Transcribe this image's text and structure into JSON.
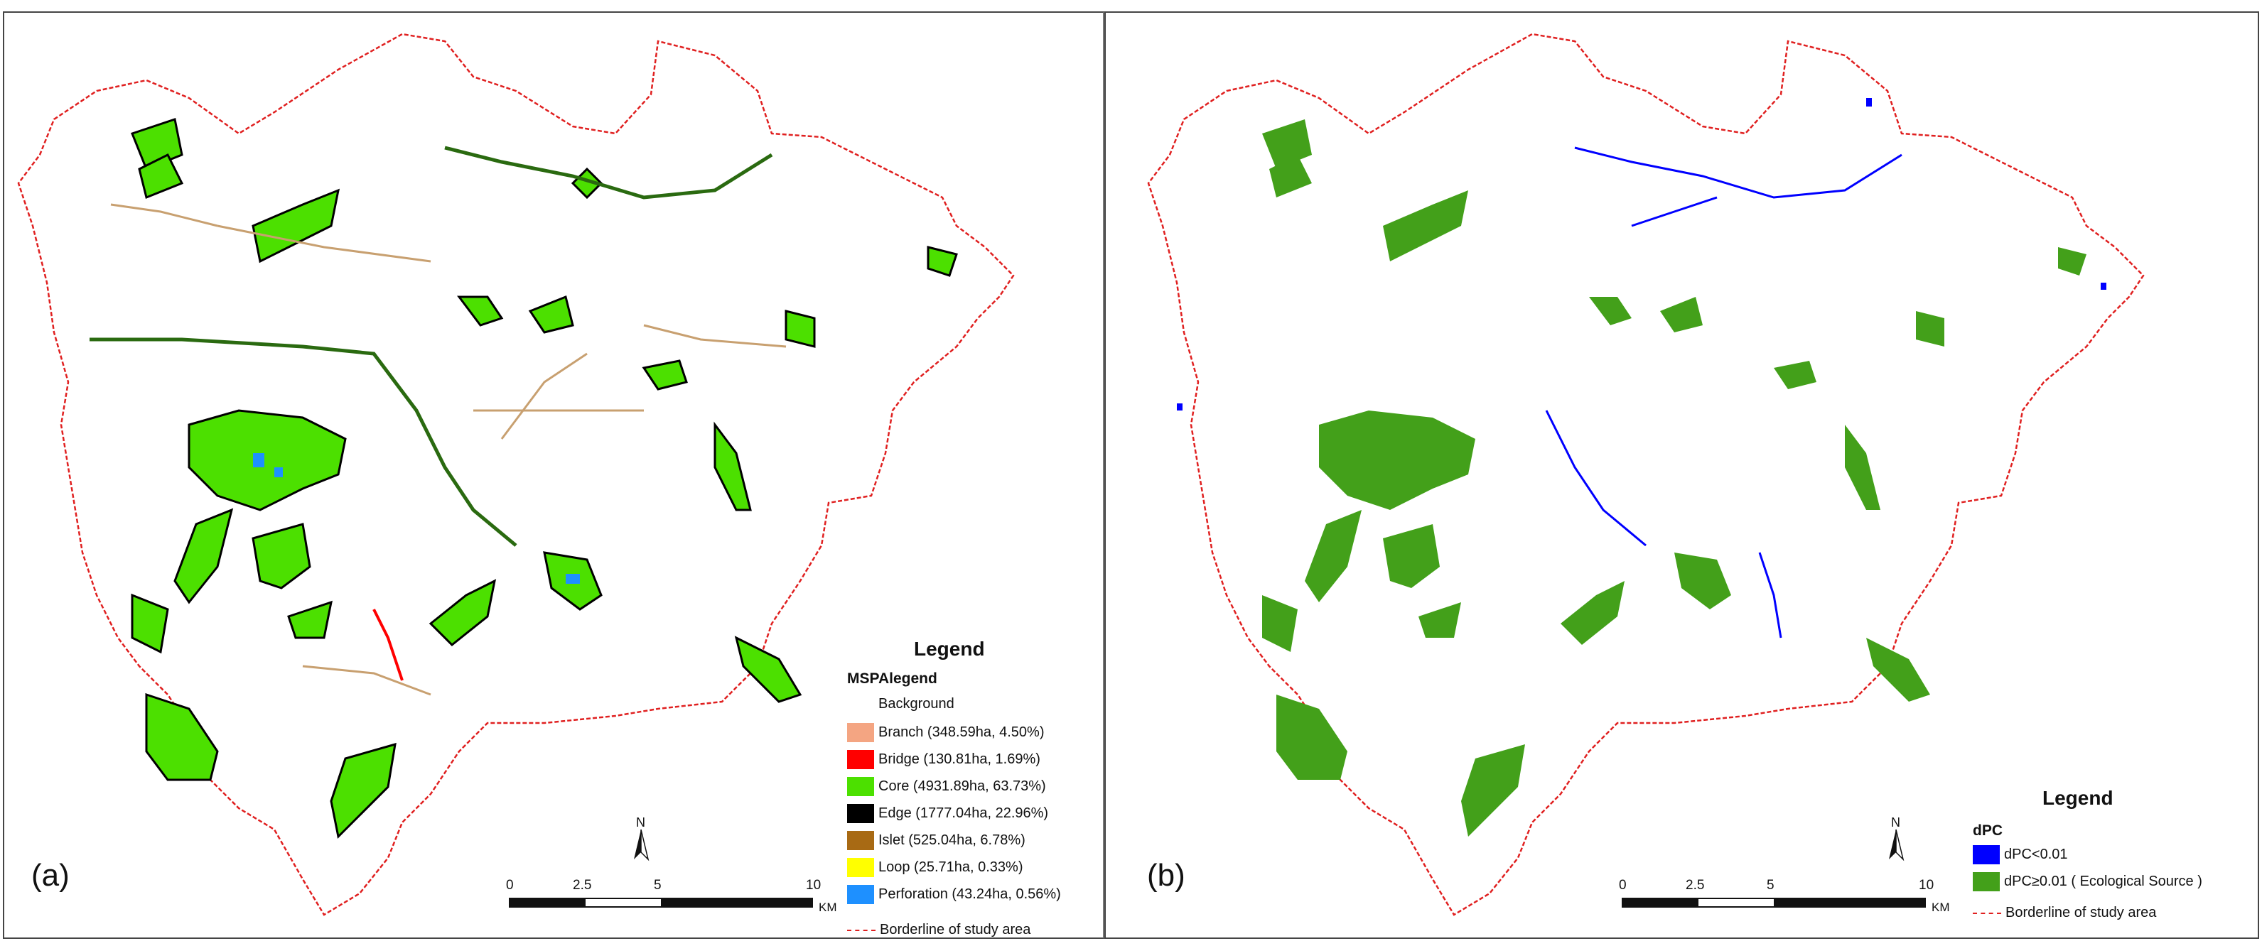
{
  "panels": [
    {
      "letter": "(a)",
      "legend": {
        "title": "Legend",
        "subtitle": "MSPAlegend",
        "background_label": "Background",
        "items": [
          {
            "label": "Branch (348.59ha, 4.50%)",
            "color": "#f4a582"
          },
          {
            "label": "Bridge (130.81ha, 1.69%)",
            "color": "#ff0000"
          },
          {
            "label": "Core (4931.89ha, 63.73%)",
            "color": "#4ce000"
          },
          {
            "label": "Edge (1777.04ha, 22.96%)",
            "color": "#000000"
          },
          {
            "label": "Islet (525.04ha, 6.78%)",
            "color": "#a86a14"
          },
          {
            "label": "Loop (25.71ha, 0.33%)",
            "color": "#ffff00"
          },
          {
            "label": "Perforation (43.24ha, 0.56%)",
            "color": "#1e90ff"
          }
        ],
        "border_label": "Borderline of study area"
      },
      "scale": {
        "ticks": [
          "0",
          "2.5",
          "5",
          "10"
        ],
        "unit": "KM"
      },
      "north": "N"
    },
    {
      "letter": "(b)",
      "legend": {
        "title": "Legend",
        "subtitle": "dPC",
        "items": [
          {
            "label": "dPC<0.01",
            "color": "#0000ff"
          },
          {
            "label": "dPC≥0.01 ( Ecological Source )",
            "color": "#43a01a"
          }
        ],
        "border_label": "Borderline of study area"
      },
      "scale": {
        "ticks": [
          "0",
          "2.5",
          "5",
          "10"
        ],
        "unit": "KM"
      },
      "north": "N"
    }
  ],
  "colors": {
    "boundary": "#e02020",
    "core_a": "#4ce000",
    "edge_a": "#000000",
    "source_b": "#43a01a",
    "low_dpc_b": "#0000ff",
    "islet": "#c8a070"
  }
}
